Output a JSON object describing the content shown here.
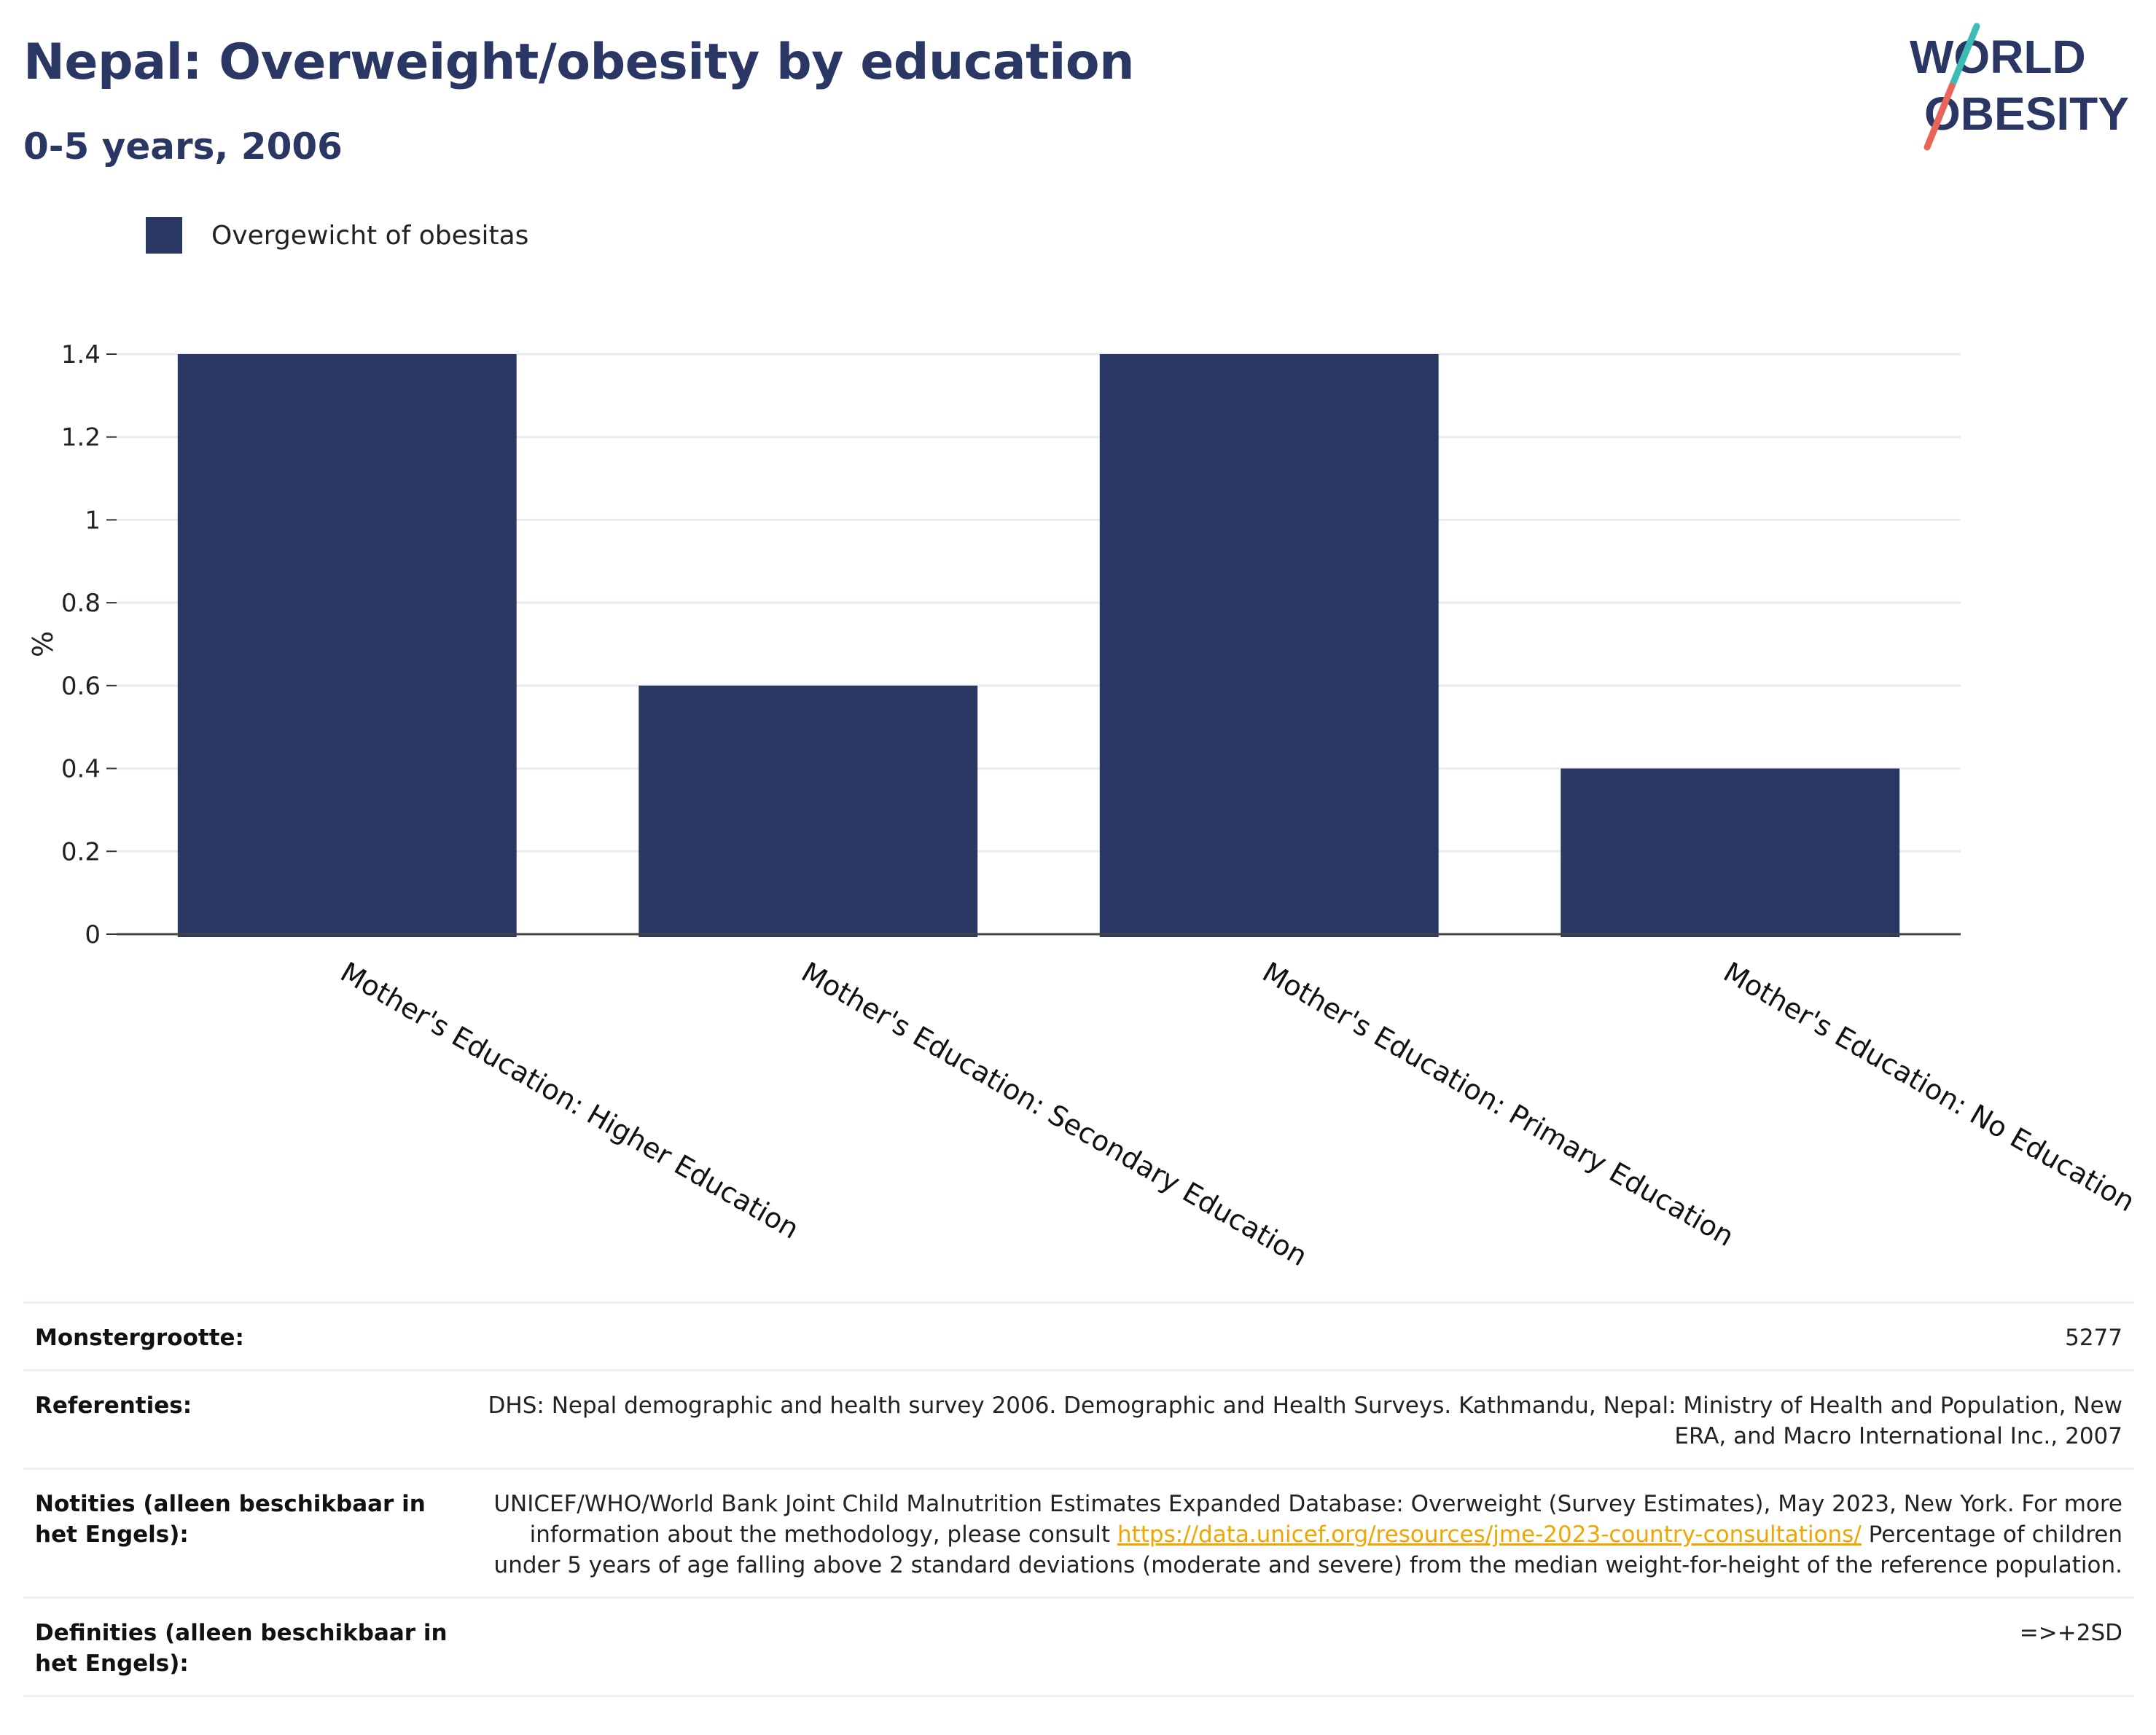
{
  "header": {
    "title": "Nepal: Overweight/obesity by education",
    "subtitle": "0-5 years, 2006"
  },
  "logo": {
    "line1": "WORLD",
    "line2": "OBESITY",
    "colors": {
      "text": "#2a3663",
      "slash_top": "#3cbcb4",
      "slash_bottom": "#e8655a"
    }
  },
  "legend": {
    "label": "Overgewicht of obesitas",
    "color": "#2a3663"
  },
  "chart_data": {
    "type": "bar",
    "categories": [
      "Mother's Education: Higher Education",
      "Mother's Education: Secondary Education",
      "Mother's Education: Primary Education",
      "Mother's Education: No Education"
    ],
    "series": [
      {
        "name": "Overgewicht of obesitas",
        "values": [
          1.4,
          0.6,
          1.4,
          0.4
        ],
        "color": "#2a3663"
      }
    ],
    "ylabel": "%",
    "ylim": [
      0,
      1.4
    ],
    "yticks": [
      0,
      0.2,
      0.4,
      0.6,
      0.8,
      1,
      1.2,
      1.4
    ],
    "ytick_labels": [
      "0",
      "0.2",
      "0.4",
      "0.6",
      "0.8",
      "1",
      "1.2",
      "1.4"
    ],
    "grid": true,
    "legend_position": "top-left"
  },
  "metadata": [
    {
      "key": "Monstergrootte:",
      "value": "5277"
    },
    {
      "key": "Referenties:",
      "value": "DHS: Nepal demographic and health survey 2006. Demographic and Health Surveys. Kathmandu, Nepal: Ministry of Health and Population, New ERA, and Macro International Inc., 2007"
    },
    {
      "key": "Notities (alleen beschikbaar in het Engels):",
      "value_pre": "UNICEF/WHO/World Bank Joint Child Malnutrition Estimates Expanded Database: Overweight (Survey Estimates), May 2023, New York. For more information about the methodology, please consult ",
      "link": "https://data.unicef.org/resources/jme-2023-country-consultations/",
      "value_post": " Percentage of children under 5 years of age falling above 2 standard deviations (moderate and severe) from the median weight-for-height of the reference population."
    },
    {
      "key": "Definities (alleen beschikbaar in het Engels):",
      "value": "=>+2SD"
    }
  ]
}
